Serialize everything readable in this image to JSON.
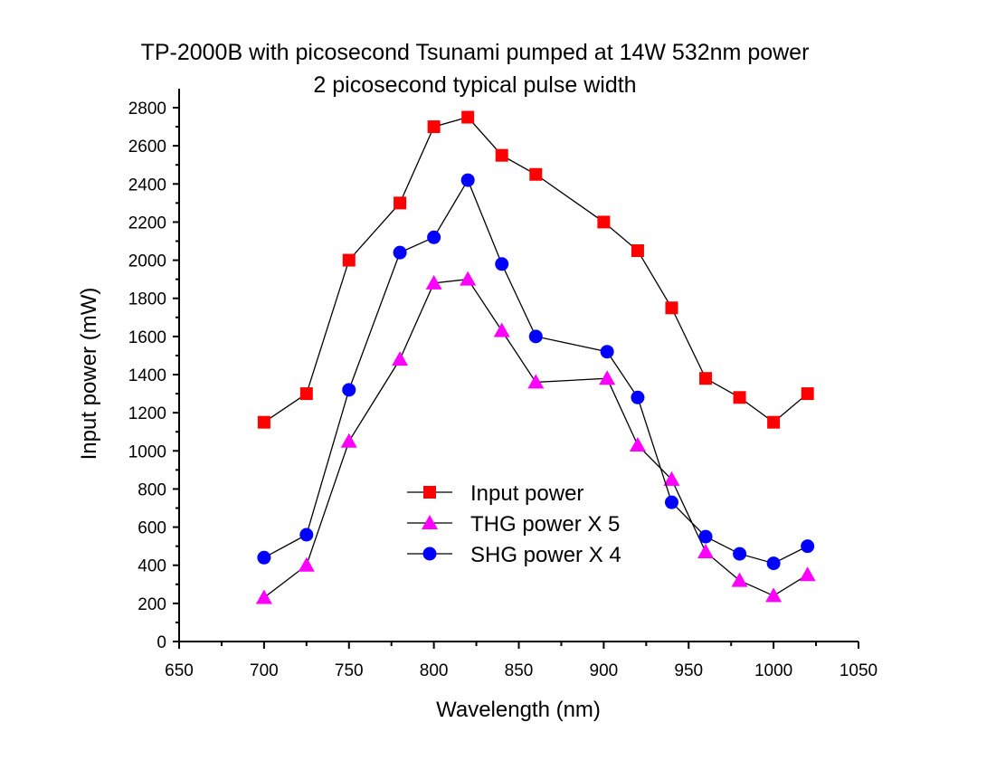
{
  "chart_data": {
    "type": "line",
    "title": "TP-2000B with picosecond Tsunami pumped at 14W 532nm power",
    "subtitle": "2 picosecond typical pulse width",
    "xlabel": "Wavelength (nm)",
    "ylabel": "Input power (mW)",
    "xlim": [
      650,
      1050
    ],
    "ylim": [
      0,
      2800
    ],
    "xticks": [
      650,
      700,
      750,
      800,
      850,
      900,
      950,
      1000,
      1050
    ],
    "xtick_labels": [
      "650",
      "700",
      "750",
      "800",
      "850",
      "900",
      "950",
      "1000",
      "1050"
    ],
    "yticks": [
      0,
      200,
      400,
      600,
      800,
      1000,
      1200,
      1400,
      1600,
      1800,
      2000,
      2200,
      2400,
      2600,
      2800
    ],
    "ytick_labels": [
      "0",
      "200",
      "400",
      "600",
      "800",
      "1000",
      "1200",
      "1400",
      "1600",
      "1800",
      "2000",
      "2200",
      "2400",
      "2600",
      "2800"
    ],
    "grid": false,
    "legend_position": "center-bottom",
    "series": [
      {
        "name": "Input power",
        "marker": "square",
        "color": "#ff0000",
        "x": [
          700,
          725,
          750,
          780,
          800,
          820,
          840,
          860,
          900,
          920,
          940,
          960,
          980,
          1000,
          1020
        ],
        "values": [
          1150,
          1300,
          2000,
          2300,
          2700,
          2750,
          2550,
          2450,
          2200,
          2050,
          1750,
          1380,
          1280,
          1150,
          1300
        ]
      },
      {
        "name": "THG power X 5",
        "marker": "triangle",
        "color": "#ff00ff",
        "x": [
          700,
          725,
          750,
          780,
          800,
          820,
          840,
          860,
          902,
          920,
          940,
          960,
          980,
          1000,
          1020
        ],
        "values": [
          230,
          400,
          1050,
          1480,
          1880,
          1900,
          1630,
          1360,
          1380,
          1030,
          850,
          470,
          320,
          240,
          350
        ]
      },
      {
        "name": "SHG power X 4",
        "marker": "circle",
        "color": "#0000ff",
        "x": [
          700,
          725,
          750,
          780,
          800,
          820,
          840,
          860,
          902,
          920,
          940,
          960,
          980,
          1000,
          1020
        ],
        "values": [
          440,
          560,
          1320,
          2040,
          2120,
          2420,
          1980,
          1600,
          1520,
          1280,
          730,
          550,
          460,
          410,
          500
        ]
      }
    ]
  }
}
